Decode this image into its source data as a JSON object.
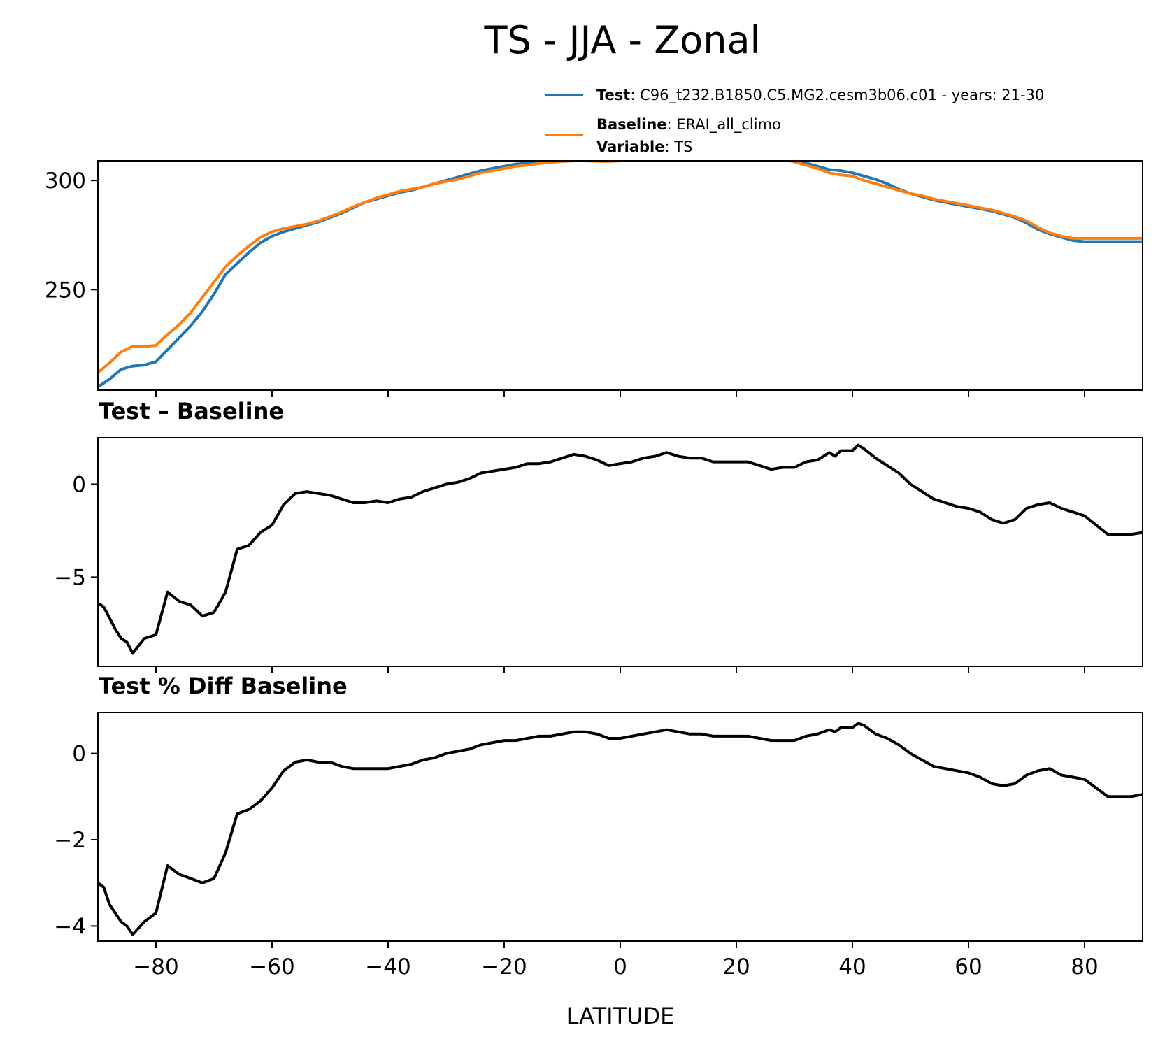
{
  "figure": {
    "title": "TS - JJA - Zonal",
    "xlabel": "LATITUDE"
  },
  "legend": {
    "test_label": "Test",
    "test_text": ": C96_t232.B1850.C5.MG2.cesm3b06.c01 - years: 21-30",
    "baseline_label": "Baseline",
    "baseline_text": ": ERAI_all_climo",
    "variable_label": "Variable",
    "variable_text": ": TS"
  },
  "colors": {
    "test": "#1f77b4",
    "baseline": "#ff7f0e",
    "diff": "#000000"
  },
  "chart_data": [
    {
      "type": "line",
      "title": "",
      "xlim": [
        -90,
        90
      ],
      "ylim": [
        204,
        309
      ],
      "x_ticks": [
        -80,
        -60,
        -40,
        -20,
        0,
        20,
        40,
        60,
        80
      ],
      "y_ticks": [
        250,
        300
      ],
      "y_tick_labels": [
        "250",
        "300"
      ],
      "series": [
        {
          "name": "Test",
          "x": [
            -90,
            -88,
            -86,
            -84,
            -82,
            -80,
            -78,
            -76,
            -74,
            -72,
            -70,
            -68,
            -66,
            -64,
            -62,
            -60,
            -58,
            -56,
            -54,
            -52,
            -50,
            -48,
            -46,
            -44,
            -42,
            -40,
            -38,
            -36,
            -34,
            -32,
            -30,
            -28,
            -26,
            -24,
            -22,
            -20,
            -18,
            -16,
            -14,
            -12,
            -10,
            -8,
            -6,
            -4,
            -2,
            0,
            2,
            4,
            6,
            8,
            10,
            12,
            14,
            16,
            18,
            20,
            22,
            24,
            26,
            28,
            30,
            32,
            34,
            36,
            38,
            40,
            42,
            44,
            46,
            48,
            50,
            52,
            54,
            56,
            58,
            60,
            62,
            64,
            66,
            68,
            70,
            72,
            74,
            76,
            78,
            80,
            82,
            84,
            86,
            88,
            90
          ],
          "values": [
            205.5,
            209,
            213.5,
            215,
            215.5,
            217,
            222.5,
            228,
            233.5,
            240,
            248,
            257,
            262,
            267,
            271.5,
            274.5,
            276.5,
            278,
            279.5,
            281,
            283,
            285,
            287.5,
            290,
            291.5,
            293,
            294.5,
            295.5,
            297,
            298.5,
            300,
            301.5,
            303,
            304.5,
            305.5,
            306.5,
            307.5,
            308,
            309,
            309.5,
            310,
            310.3,
            310.1,
            309.8,
            309.5,
            309.8,
            310.5,
            311,
            311.2,
            311.5,
            311.8,
            312,
            312.3,
            312.6,
            312.8,
            312.8,
            312.6,
            312,
            311.5,
            310.5,
            309.5,
            308,
            306.5,
            305,
            304.5,
            303.5,
            302,
            300.5,
            298.5,
            296,
            294,
            292.5,
            291,
            290,
            289,
            288,
            287,
            286,
            284.5,
            283,
            280.5,
            277.5,
            275.5,
            274,
            272.5,
            272,
            272,
            272,
            272,
            272,
            272
          ]
        },
        {
          "name": "Baseline",
          "x": [
            -90,
            -88,
            -86,
            -84,
            -82,
            -80,
            -78,
            -76,
            -74,
            -72,
            -70,
            -68,
            -66,
            -64,
            -62,
            -60,
            -58,
            -56,
            -54,
            -52,
            -50,
            -48,
            -46,
            -44,
            -42,
            -40,
            -38,
            -36,
            -34,
            -32,
            -30,
            -28,
            -26,
            -24,
            -22,
            -20,
            -18,
            -16,
            -14,
            -12,
            -10,
            -8,
            -6,
            -4,
            -2,
            0,
            2,
            4,
            6,
            8,
            10,
            12,
            14,
            16,
            18,
            20,
            22,
            24,
            26,
            28,
            30,
            32,
            34,
            36,
            38,
            40,
            42,
            44,
            46,
            48,
            50,
            52,
            54,
            56,
            58,
            60,
            62,
            64,
            66,
            68,
            70,
            72,
            74,
            76,
            78,
            80,
            82,
            84,
            86,
            88,
            90
          ],
          "values": [
            212,
            216.5,
            221.5,
            224,
            224,
            224.5,
            229.5,
            234,
            239.5,
            246.5,
            253.5,
            260.5,
            265.5,
            270,
            274,
            276.5,
            278,
            279,
            280,
            281.5,
            283.5,
            285.5,
            288,
            290,
            292,
            293.5,
            295,
            296,
            297,
            298.5,
            299.5,
            300.5,
            302,
            303.5,
            304.5,
            305.5,
            306.5,
            307,
            307.8,
            308.3,
            308.7,
            309,
            309,
            308.8,
            308.7,
            309,
            309.6,
            309.8,
            310,
            310,
            310.3,
            310.7,
            311.1,
            311.5,
            311.6,
            311.6,
            311.5,
            311.3,
            310.8,
            309.8,
            308.5,
            307,
            305.5,
            303.5,
            302.5,
            302,
            300,
            298.5,
            297,
            295.5,
            294,
            293,
            291.5,
            290.5,
            289.5,
            288.5,
            287.5,
            286.5,
            285,
            283.5,
            281.5,
            278.5,
            276,
            274.5,
            273.5,
            273.5,
            273.5,
            273.5,
            273.5,
            273.5,
            273.5
          ]
        }
      ]
    },
    {
      "type": "line",
      "title": "Test – Baseline",
      "xlim": [
        -90,
        90
      ],
      "ylim": [
        -9.8,
        2.5
      ],
      "x_ticks": [
        -80,
        -60,
        -40,
        -20,
        0,
        20,
        40,
        60,
        80
      ],
      "y_ticks": [
        -5,
        0
      ],
      "y_tick_labels": [
        "−5",
        "0"
      ],
      "series": [
        {
          "name": "",
          "x": [
            -90,
            -89,
            -88,
            -87,
            -86,
            -85,
            -84,
            -82,
            -80,
            -78,
            -76,
            -74,
            -72,
            -70,
            -68,
            -66,
            -64,
            -62,
            -60,
            -58,
            -56,
            -54,
            -52,
            -50,
            -48,
            -46,
            -44,
            -42,
            -40,
            -38,
            -36,
            -34,
            -32,
            -30,
            -28,
            -26,
            -24,
            -22,
            -20,
            -18,
            -16,
            -14,
            -12,
            -10,
            -8,
            -6,
            -4,
            -2,
            0,
            2,
            4,
            6,
            8,
            10,
            12,
            14,
            16,
            18,
            20,
            22,
            24,
            26,
            28,
            30,
            32,
            34,
            36,
            37,
            38,
            40,
            41,
            42,
            44,
            46,
            48,
            50,
            52,
            54,
            56,
            58,
            60,
            62,
            64,
            66,
            68,
            70,
            72,
            74,
            76,
            78,
            80,
            82,
            84,
            86,
            88,
            90
          ],
          "values": [
            -6.4,
            -6.6,
            -7.2,
            -7.8,
            -8.3,
            -8.5,
            -9.1,
            -8.3,
            -8.1,
            -5.8,
            -6.3,
            -6.5,
            -7.1,
            -6.9,
            -5.8,
            -3.5,
            -3.3,
            -2.6,
            -2.2,
            -1.1,
            -0.5,
            -0.4,
            -0.5,
            -0.6,
            -0.8,
            -1.0,
            -1.0,
            -0.9,
            -1.0,
            -0.8,
            -0.7,
            -0.4,
            -0.2,
            0.0,
            0.1,
            0.3,
            0.6,
            0.7,
            0.8,
            0.9,
            1.1,
            1.1,
            1.2,
            1.4,
            1.6,
            1.5,
            1.3,
            1.0,
            1.1,
            1.2,
            1.4,
            1.5,
            1.7,
            1.5,
            1.4,
            1.4,
            1.2,
            1.2,
            1.2,
            1.2,
            1.0,
            0.8,
            0.9,
            0.9,
            1.2,
            1.3,
            1.7,
            1.5,
            1.8,
            1.8,
            2.1,
            1.9,
            1.4,
            1.0,
            0.6,
            0.0,
            -0.4,
            -0.8,
            -1.0,
            -1.2,
            -1.3,
            -1.5,
            -1.9,
            -2.1,
            -1.9,
            -1.3,
            -1.1,
            -1.0,
            -1.3,
            -1.5,
            -1.7,
            -2.2,
            -2.7,
            -2.7,
            -2.7,
            -2.6
          ]
        }
      ]
    },
    {
      "type": "line",
      "title": "Test % Diff Baseline",
      "xlim": [
        -90,
        90
      ],
      "ylim": [
        -4.35,
        0.95
      ],
      "x_ticks": [
        -80,
        -60,
        -40,
        -20,
        0,
        20,
        40,
        60,
        80
      ],
      "x_tick_labels": [
        "−80",
        "−60",
        "−40",
        "−20",
        "0",
        "20",
        "40",
        "60",
        "80"
      ],
      "y_ticks": [
        -4,
        -2,
        0
      ],
      "y_tick_labels": [
        "−4",
        "−2",
        "0"
      ],
      "series": [
        {
          "name": "",
          "x": [
            -90,
            -89,
            -88,
            -87,
            -86,
            -85,
            -84,
            -82,
            -80,
            -78,
            -76,
            -74,
            -72,
            -70,
            -68,
            -66,
            -64,
            -62,
            -60,
            -58,
            -56,
            -54,
            -52,
            -50,
            -48,
            -46,
            -44,
            -42,
            -40,
            -38,
            -36,
            -34,
            -32,
            -30,
            -28,
            -26,
            -24,
            -22,
            -20,
            -18,
            -16,
            -14,
            -12,
            -10,
            -8,
            -6,
            -4,
            -2,
            0,
            2,
            4,
            6,
            8,
            10,
            12,
            14,
            16,
            18,
            20,
            22,
            24,
            26,
            28,
            30,
            32,
            34,
            36,
            37,
            38,
            40,
            41,
            42,
            44,
            46,
            48,
            50,
            52,
            54,
            56,
            58,
            60,
            62,
            64,
            66,
            68,
            70,
            72,
            74,
            76,
            78,
            80,
            82,
            84,
            86,
            88,
            90
          ],
          "values": [
            -3.0,
            -3.1,
            -3.5,
            -3.7,
            -3.9,
            -4.0,
            -4.2,
            -3.9,
            -3.7,
            -2.6,
            -2.8,
            -2.9,
            -3.0,
            -2.9,
            -2.3,
            -1.4,
            -1.3,
            -1.1,
            -0.8,
            -0.4,
            -0.2,
            -0.15,
            -0.2,
            -0.2,
            -0.3,
            -0.35,
            -0.35,
            -0.35,
            -0.35,
            -0.3,
            -0.25,
            -0.15,
            -0.1,
            0.0,
            0.05,
            0.1,
            0.2,
            0.25,
            0.3,
            0.3,
            0.35,
            0.4,
            0.4,
            0.45,
            0.5,
            0.5,
            0.45,
            0.35,
            0.35,
            0.4,
            0.45,
            0.5,
            0.55,
            0.5,
            0.45,
            0.45,
            0.4,
            0.4,
            0.4,
            0.4,
            0.35,
            0.3,
            0.3,
            0.3,
            0.4,
            0.45,
            0.55,
            0.5,
            0.6,
            0.6,
            0.7,
            0.65,
            0.45,
            0.35,
            0.2,
            0.0,
            -0.15,
            -0.3,
            -0.35,
            -0.4,
            -0.45,
            -0.55,
            -0.7,
            -0.75,
            -0.7,
            -0.5,
            -0.4,
            -0.35,
            -0.5,
            -0.55,
            -0.6,
            -0.8,
            -1.0,
            -1.0,
            -1.0,
            -0.95
          ]
        }
      ]
    }
  ]
}
